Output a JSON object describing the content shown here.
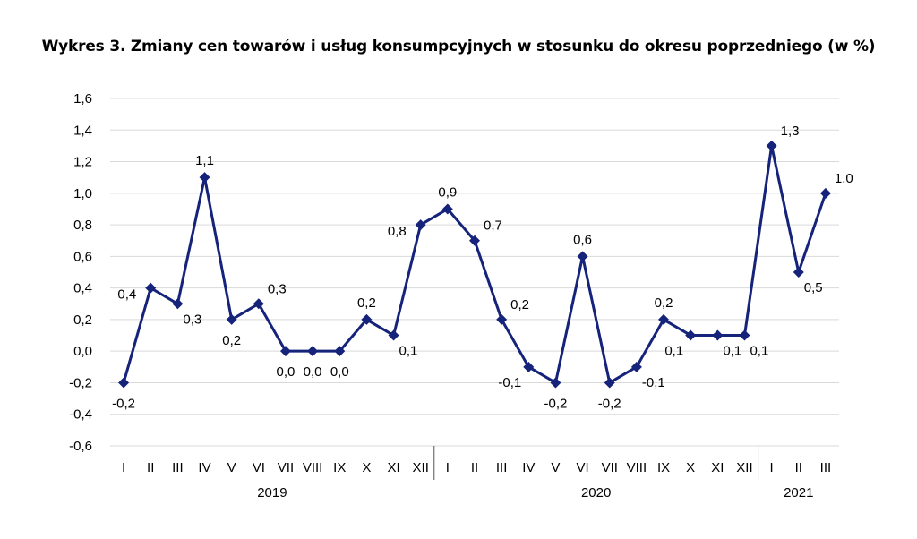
{
  "chart_data": {
    "type": "line",
    "title": "Wykres 3. Zmiany cen towarów i usług konsumpcyjnych w stosunku do okresu poprzedniego (w %)",
    "xlabel": "",
    "ylabel": "",
    "ylim": [
      -0.6,
      1.6
    ],
    "ytick_step": 0.2,
    "grid": true,
    "legend": "none",
    "line_color": "#16237a",
    "grid_color": "#d9d9d9",
    "year_groups": [
      {
        "year": "2019",
        "count": 12
      },
      {
        "year": "2020",
        "count": 12
      },
      {
        "year": "2021",
        "count": 3
      }
    ],
    "categories": [
      "I",
      "II",
      "III",
      "IV",
      "V",
      "VI",
      "VII",
      "VIII",
      "IX",
      "X",
      "XI",
      "XII",
      "I",
      "II",
      "III",
      "IV",
      "V",
      "VI",
      "VII",
      "VIII",
      "IX",
      "X",
      "XI",
      "XII",
      "I",
      "II",
      "III"
    ],
    "series": [
      {
        "values": [
          -0.2,
          0.4,
          0.3,
          1.1,
          0.2,
          0.3,
          0.0,
          0.0,
          0.0,
          0.2,
          0.1,
          0.8,
          0.9,
          0.7,
          0.2,
          -0.1,
          -0.2,
          0.6,
          -0.2,
          -0.1,
          0.2,
          0.1,
          0.1,
          0.1,
          1.3,
          0.5,
          1.0
        ],
        "labels": [
          "-0,2",
          "0,4",
          "0,3",
          "1,1",
          "0,2",
          "0,3",
          "0,0",
          "0,0",
          "0,0",
          "0,2",
          "0,1",
          "0,8",
          "0,9",
          "0,7",
          "0,2",
          "-0,1",
          "-0,2",
          "0,6",
          "-0,2",
          "-0,1",
          "0,2",
          "0,1",
          "0,1",
          "0,1",
          "1,3",
          "0,5",
          "1,0"
        ]
      }
    ],
    "ytick_labels": [
      "-0,6",
      "-0,4",
      "-0,2",
      "0,0",
      "0,2",
      "0,4",
      "0,6",
      "0,8",
      "1,0",
      "1,2",
      "1,4",
      "1,6"
    ]
  }
}
